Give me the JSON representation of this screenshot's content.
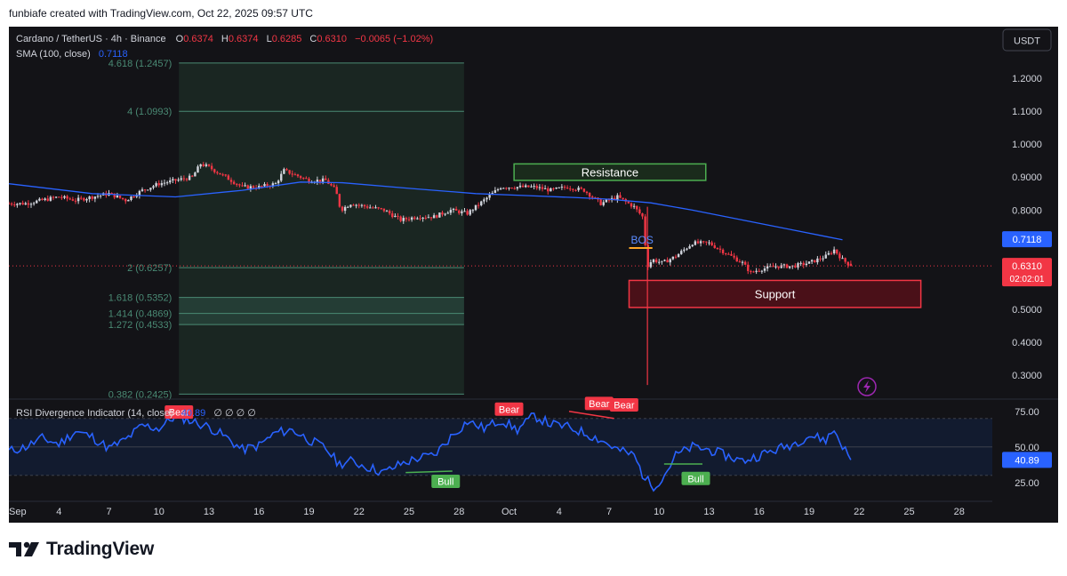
{
  "header": {
    "credit": "funbiafe created with TradingView.com, Oct 22, 2025 09:57 UTC"
  },
  "legend": {
    "symbol": "Cardano / TetherUS · 4h · Binance",
    "o_label": "O",
    "o_value": "0.6374",
    "h_label": "H",
    "h_value": "0.6374",
    "l_label": "L",
    "l_value": "0.6285",
    "c_label": "C",
    "c_value": "0.6310",
    "change": "−0.0065 (−1.02%)",
    "sma_label": "SMA (100, close)",
    "sma_value": "0.7118"
  },
  "currency_button": "USDT",
  "price_badges": {
    "sma": "0.7118",
    "last": "0.6310",
    "countdown": "02:02:01"
  },
  "annotations": {
    "resistance": "Resistance",
    "support": "Support",
    "bos": "BOS"
  },
  "rsi_panel": {
    "title": "RSI Divergence Indicator (14, close)",
    "value": "40.89",
    "extras": "∅ ∅ ∅ ∅",
    "badge": "40.89",
    "signals": [
      {
        "label": "Bear",
        "x": 10.2,
        "y": 68
      },
      {
        "label": "Bull",
        "x": 26.2,
        "y": 33
      },
      {
        "label": "Bear",
        "x": 30.0,
        "y": 70
      },
      {
        "label": "Bear",
        "x": 35.4,
        "y": 74
      },
      {
        "label": "Bear",
        "x": 36.9,
        "y": 73
      },
      {
        "label": "Bull",
        "x": 41.2,
        "y": 35
      }
    ]
  },
  "brand": {
    "name": "TradingView"
  },
  "colors": {
    "background": "#131317",
    "sma": "#2962ff",
    "rsi": "#2962ff",
    "up": "#d1d4dc",
    "down": "#f23645",
    "resistance": "#4caf50",
    "support": "#f23645",
    "fib": "#4a8a74",
    "bos": "#ffa726"
  },
  "chart_data": [
    {
      "type": "candlestick",
      "title": "Cardano / TetherUS · 4h · Binance",
      "timeframe": "4h",
      "x_axis_ticks": [
        "Sep",
        "4",
        "7",
        "10",
        "13",
        "16",
        "19",
        "22",
        "25",
        "28",
        "Oct",
        "4",
        "7",
        "10",
        "13",
        "16",
        "19",
        "22",
        "25",
        "28"
      ],
      "y_axis_ticks": [
        "1.2000",
        "1.1000",
        "1.0000",
        "0.9000",
        "0.8000",
        "0.6310",
        "0.5000",
        "0.4000",
        "0.3000"
      ],
      "y_tick_values": [
        1.2,
        1.1,
        1.0,
        0.9,
        0.8,
        0.5,
        0.4,
        0.3
      ],
      "ylim": [
        0.23,
        1.275
      ],
      "xlim_days": [
        0,
        57
      ],
      "last_price": 0.631,
      "ohlc_last": {
        "open": 0.6374,
        "high": 0.6374,
        "low": 0.6285,
        "close": 0.631
      },
      "close_path": [
        [
          0,
          0.82
        ],
        [
          1,
          0.82
        ],
        [
          2,
          0.83
        ],
        [
          3,
          0.84
        ],
        [
          4,
          0.83
        ],
        [
          5,
          0.84
        ],
        [
          6,
          0.85
        ],
        [
          7,
          0.83
        ],
        [
          8,
          0.86
        ],
        [
          9,
          0.88
        ],
        [
          10,
          0.89
        ],
        [
          11,
          0.9
        ],
        [
          11.5,
          0.94
        ],
        [
          12,
          0.93
        ],
        [
          13,
          0.9
        ],
        [
          14,
          0.87
        ],
        [
          15,
          0.87
        ],
        [
          16,
          0.88
        ],
        [
          16.5,
          0.92
        ],
        [
          17,
          0.91
        ],
        [
          18,
          0.89
        ],
        [
          19,
          0.89
        ],
        [
          19.6,
          0.86
        ],
        [
          19.9,
          0.8
        ],
        [
          20.5,
          0.82
        ],
        [
          21.5,
          0.81
        ],
        [
          22.5,
          0.8
        ],
        [
          23.5,
          0.77
        ],
        [
          24.5,
          0.78
        ],
        [
          25.5,
          0.78
        ],
        [
          26.5,
          0.8
        ],
        [
          27.5,
          0.79
        ],
        [
          28.5,
          0.83
        ],
        [
          29.5,
          0.87
        ],
        [
          30.5,
          0.87
        ],
        [
          31.5,
          0.87
        ],
        [
          32.5,
          0.86
        ],
        [
          33.5,
          0.87
        ],
        [
          34.5,
          0.86
        ],
        [
          35.5,
          0.82
        ],
        [
          36.5,
          0.84
        ],
        [
          37.5,
          0.81
        ],
        [
          38,
          0.78
        ],
        [
          38.3,
          0.63
        ],
        [
          38.6,
          0.65
        ],
        [
          39.2,
          0.64
        ],
        [
          40,
          0.66
        ],
        [
          41,
          0.7
        ],
        [
          42,
          0.7
        ],
        [
          43,
          0.67
        ],
        [
          44,
          0.64
        ],
        [
          44.5,
          0.61
        ],
        [
          45,
          0.62
        ],
        [
          46,
          0.63
        ],
        [
          47,
          0.63
        ],
        [
          48,
          0.64
        ],
        [
          49,
          0.66
        ],
        [
          49.5,
          0.68
        ],
        [
          50,
          0.65
        ],
        [
          50.5,
          0.631
        ]
      ],
      "key_wicks": [
        {
          "x": 38.3,
          "low": 0.27,
          "high": 0.81
        }
      ],
      "series": [
        {
          "name": "SMA (100, close)",
          "last_value": 0.7118,
          "points": [
            [
              0,
              0.88
            ],
            [
              5,
              0.85
            ],
            [
              10,
              0.84
            ],
            [
              14,
              0.86
            ],
            [
              17.5,
              0.885
            ],
            [
              20,
              0.883
            ],
            [
              24,
              0.866
            ],
            [
              28,
              0.85
            ],
            [
              31,
              0.844
            ],
            [
              34,
              0.838
            ],
            [
              36,
              0.833
            ],
            [
              38.5,
              0.822
            ],
            [
              41,
              0.8
            ],
            [
              44,
              0.77
            ],
            [
              47,
              0.74
            ],
            [
              49,
              0.72
            ],
            [
              50,
              0.71
            ]
          ]
        }
      ],
      "fib_levels": [
        {
          "label": "4.618 (1.2457)",
          "value": 1.2457
        },
        {
          "label": "4 (1.0993)",
          "value": 1.0993
        },
        {
          "label": "2 (0.6257)",
          "value": 0.6257
        },
        {
          "label": "1.618 (0.5352)",
          "value": 0.5352
        },
        {
          "label": "1.414 (0.4869)",
          "value": 0.4869
        },
        {
          "label": "1.272 (0.4533)",
          "value": 0.4533
        },
        {
          "label": "0.382 (0.2425)",
          "value": 0.2425
        }
      ],
      "fib_range_days": [
        10.2,
        27.3
      ],
      "zones": [
        {
          "name": "Resistance",
          "top": 0.94,
          "bottom": 0.89,
          "start_day": 30.3,
          "end_day": 41.8
        },
        {
          "name": "Support",
          "top": 0.587,
          "bottom": 0.505,
          "start_day": 37.2,
          "end_day": 54.7
        }
      ],
      "bos": {
        "label": "BOS",
        "value": 0.685,
        "start_day": 37.2,
        "end_day": 38.6
      }
    },
    {
      "type": "line",
      "title": "RSI Divergence Indicator (14, close)",
      "y_axis_ticks": [
        "75.00",
        "50.00",
        "25.00"
      ],
      "ylim": [
        13,
        83
      ],
      "bands": [
        30,
        50,
        70
      ],
      "last_value": 40.89,
      "series": [
        {
          "name": "RSI",
          "values": [
            [
              0,
              47
            ],
            [
              1,
              50
            ],
            [
              2,
              56
            ],
            [
              3,
              52
            ],
            [
              4,
              61
            ],
            [
              5,
              57
            ],
            [
              6,
              49
            ],
            [
              7,
              55
            ],
            [
              8,
              65
            ],
            [
              9,
              63
            ],
            [
              10,
              72
            ],
            [
              11,
              68
            ],
            [
              12,
              64
            ],
            [
              13,
              57
            ],
            [
              14,
              48
            ],
            [
              15,
              51
            ],
            [
              16,
              60
            ],
            [
              17,
              62
            ],
            [
              18,
              55
            ],
            [
              19,
              49
            ],
            [
              19.8,
              38
            ],
            [
              20.5,
              40
            ],
            [
              21.5,
              36
            ],
            [
              22.5,
              32
            ],
            [
              23.5,
              38
            ],
            [
              24.5,
              42
            ],
            [
              25.5,
              44
            ],
            [
              26.5,
              57
            ],
            [
              27.5,
              68
            ],
            [
              28.5,
              63
            ],
            [
              29.5,
              69
            ],
            [
              30.5,
              62
            ],
            [
              31.5,
              72
            ],
            [
              32.5,
              66
            ],
            [
              33.5,
              64
            ],
            [
              34.5,
              60
            ],
            [
              35.5,
              55
            ],
            [
              36.5,
              48
            ],
            [
              37.5,
              44
            ],
            [
              38,
              31
            ],
            [
              38.6,
              22
            ],
            [
              39.2,
              28
            ],
            [
              40,
              44
            ],
            [
              41,
              50
            ],
            [
              42,
              48
            ],
            [
              43,
              44
            ],
            [
              44,
              40
            ],
            [
              45,
              44
            ],
            [
              46,
              48
            ],
            [
              47,
              52
            ],
            [
              48,
              58
            ],
            [
              49,
              55
            ],
            [
              49.5,
              62
            ],
            [
              50,
              51
            ],
            [
              50.5,
              41
            ]
          ]
        }
      ]
    }
  ]
}
